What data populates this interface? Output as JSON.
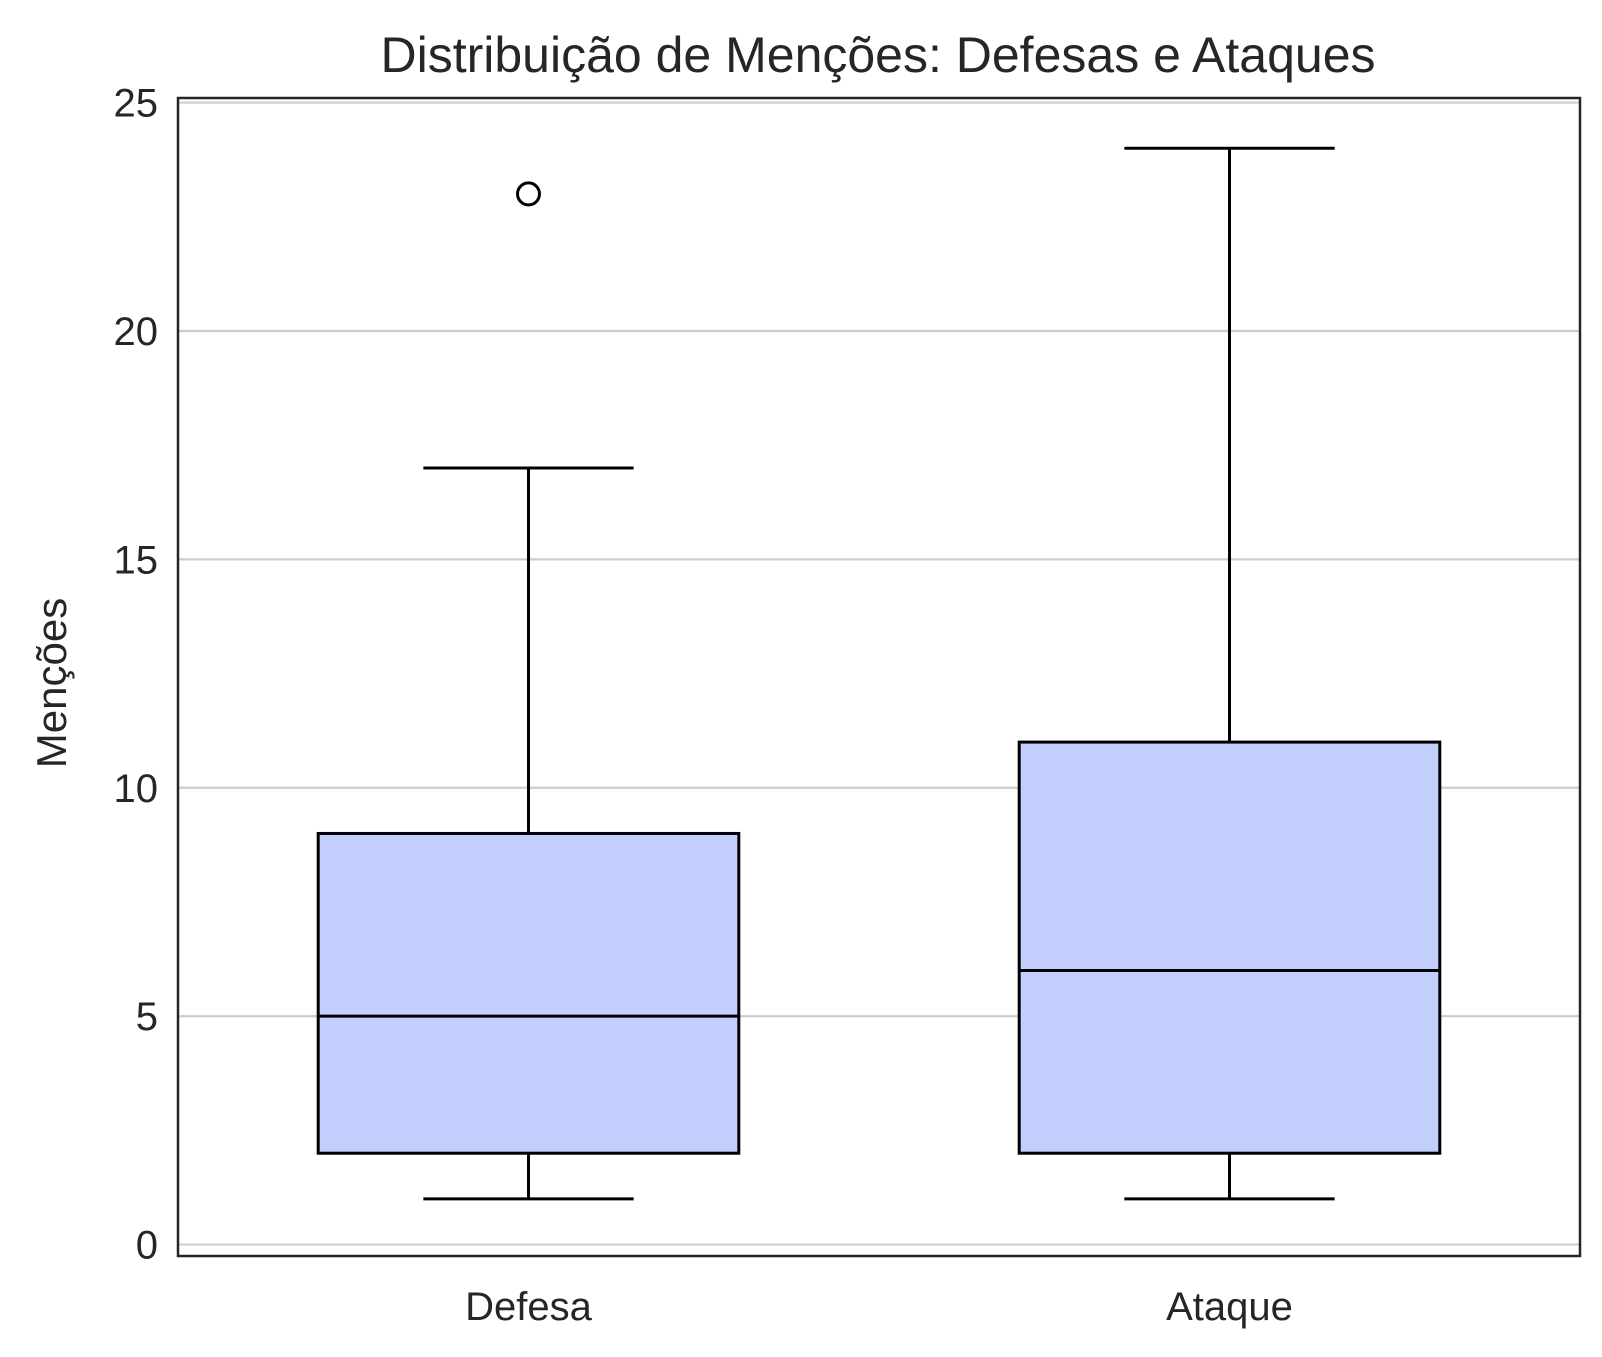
{
  "chart_data": {
    "type": "box",
    "title": "Distribuição de Menções: Defesas e Ataques",
    "xlabel": "",
    "ylabel": "Menções",
    "ylim": [
      -0.25,
      25.1
    ],
    "yticks": [
      0,
      5,
      10,
      15,
      20,
      25
    ],
    "grid": "horizontal",
    "box_color": "#c2cffd",
    "categories": [
      "Defesa",
      "Ataque"
    ],
    "boxes": [
      {
        "category": "Defesa",
        "whisker_low": 1,
        "q1": 2,
        "median": 5,
        "q3": 9,
        "whisker_high": 17,
        "outliers": [
          23
        ]
      },
      {
        "category": "Ataque",
        "whisker_low": 1,
        "q1": 2,
        "median": 6,
        "q3": 11,
        "whisker_high": 24,
        "outliers": []
      }
    ]
  }
}
